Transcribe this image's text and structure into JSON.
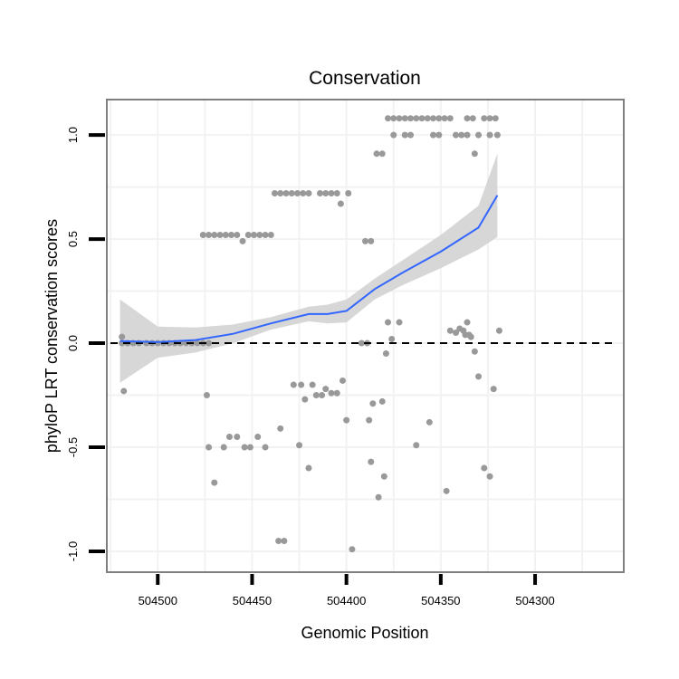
{
  "chart_data": {
    "type": "scatter",
    "title": "Conservation",
    "xlabel": "Genomic Position",
    "ylabel": "phyloP LRT conservation scores",
    "x_reversed": true,
    "xlim": [
      504253,
      504527
    ],
    "ylim": [
      -1.1,
      1.17
    ],
    "xticks": [
      504500,
      504450,
      504400,
      504350,
      504300
    ],
    "yticks": [
      1.0,
      0.5,
      0.0,
      -0.5,
      -1.0
    ],
    "ytick_labels": [
      "1.0",
      "0.5",
      "0.0",
      "-0.5",
      "-1.0"
    ],
    "reference_line_y": 0,
    "colors": {
      "points": "#999999",
      "smooth_line": "#3366ff",
      "confidence_band": "#d3d3d3",
      "panel_border": "#7f7f7f",
      "grid": "#f2f2f2",
      "reference_line": "#000000"
    },
    "points": [
      [
        504519,
        0.03
      ],
      [
        504518,
        -0.23
      ],
      [
        504474,
        -0.25
      ],
      [
        504473,
        -0.5
      ],
      [
        504470,
        -0.67
      ],
      [
        504465,
        -0.5
      ],
      [
        504462,
        -0.45
      ],
      [
        504458,
        -0.45
      ],
      [
        504454,
        -0.5
      ],
      [
        504451,
        -0.5
      ],
      [
        504447,
        -0.45
      ],
      [
        504443,
        -0.5
      ],
      [
        504436,
        -0.95
      ],
      [
        504433,
        -0.95
      ],
      [
        504435,
        -0.41
      ],
      [
        504428,
        -0.2
      ],
      [
        504425,
        -0.49
      ],
      [
        504424,
        -0.2
      ],
      [
        504422,
        -0.27
      ],
      [
        504420,
        -0.6
      ],
      [
        504418,
        -0.2
      ],
      [
        504416,
        -0.25
      ],
      [
        504413,
        -0.25
      ],
      [
        504411,
        -0.22
      ],
      [
        504408,
        -0.24
      ],
      [
        504405,
        -0.24
      ],
      [
        504402,
        -0.18
      ],
      [
        504400,
        -0.37
      ],
      [
        504397,
        -0.99
      ],
      [
        504392,
        0.0
      ],
      [
        504389,
        0.0
      ],
      [
        504388,
        -0.37
      ],
      [
        504387,
        -0.57
      ],
      [
        504386,
        -0.29
      ],
      [
        504383,
        -0.74
      ],
      [
        504380,
        -0.64
      ],
      [
        504381,
        -0.28
      ],
      [
        504379,
        -0.05
      ],
      [
        504378,
        0.1
      ],
      [
        504376,
        0.02
      ],
      [
        504372,
        0.1
      ],
      [
        504363,
        -0.49
      ],
      [
        504356,
        -0.38
      ],
      [
        504347,
        -0.71
      ],
      [
        504345,
        0.06
      ],
      [
        504342,
        0.05
      ],
      [
        504340,
        0.07
      ],
      [
        504337,
        0.04
      ],
      [
        504336,
        0.1
      ],
      [
        504334,
        0.03
      ],
      [
        504332,
        -0.04
      ],
      [
        504330,
        -0.16
      ],
      [
        504327,
        -0.6
      ],
      [
        504324,
        -0.64
      ],
      [
        504322,
        -0.22
      ],
      [
        504319,
        0.06
      ],
      [
        504335,
        0.04
      ],
      [
        504338,
        0.06
      ],
      [
        504476,
        0.52
      ],
      [
        504473,
        0.52
      ],
      [
        504470,
        0.52
      ],
      [
        504467,
        0.52
      ],
      [
        504464,
        0.52
      ],
      [
        504461,
        0.52
      ],
      [
        504458,
        0.52
      ],
      [
        504455,
        0.49
      ],
      [
        504452,
        0.52
      ],
      [
        504449,
        0.52
      ],
      [
        504446,
        0.52
      ],
      [
        504443,
        0.52
      ],
      [
        504440,
        0.52
      ],
      [
        504438,
        0.72
      ],
      [
        504435,
        0.72
      ],
      [
        504432,
        0.72
      ],
      [
        504429,
        0.72
      ],
      [
        504426,
        0.72
      ],
      [
        504423,
        0.72
      ],
      [
        504420,
        0.72
      ],
      [
        504414,
        0.72
      ],
      [
        504411,
        0.72
      ],
      [
        504408,
        0.72
      ],
      [
        504405,
        0.72
      ],
      [
        504403,
        0.67
      ],
      [
        504399,
        0.72
      ],
      [
        504390,
        0.49
      ],
      [
        504387,
        0.49
      ],
      [
        504384,
        0.91
      ],
      [
        504381,
        0.91
      ],
      [
        504378,
        1.08
      ],
      [
        504375,
        1.08
      ],
      [
        504372,
        1.08
      ],
      [
        504369,
        1.08
      ],
      [
        504366,
        1.08
      ],
      [
        504363,
        1.08
      ],
      [
        504360,
        1.08
      ],
      [
        504357,
        1.08
      ],
      [
        504354,
        1.08
      ],
      [
        504351,
        1.08
      ],
      [
        504348,
        1.08
      ],
      [
        504345,
        1.08
      ],
      [
        504336,
        1.08
      ],
      [
        504333,
        1.08
      ],
      [
        504327,
        1.08
      ],
      [
        504324,
        1.08
      ],
      [
        504321,
        1.08
      ],
      [
        504375,
        1.0
      ],
      [
        504369,
        1.0
      ],
      [
        504366,
        1.0
      ],
      [
        504354,
        1.0
      ],
      [
        504351,
        1.0
      ],
      [
        504342,
        1.0
      ],
      [
        504339,
        1.0
      ],
      [
        504336,
        1.0
      ],
      [
        504330,
        1.0
      ],
      [
        504324,
        1.0
      ],
      [
        504320,
        1.0
      ],
      [
        504332,
        0.91
      ]
    ],
    "flat_points_x": [
      504519,
      504516,
      504513,
      504510,
      504506,
      504503,
      504500,
      504497,
      504494,
      504491,
      504488,
      504485,
      504482,
      504479,
      504476,
      504473
    ],
    "flat_points_y": 0.0,
    "smooth_x": [
      504520,
      504500,
      504480,
      504460,
      504440,
      504420,
      504410,
      504400,
      504385,
      504370,
      504350,
      504330,
      504320
    ],
    "smooth_y": [
      0.01,
      0.005,
      0.015,
      0.045,
      0.095,
      0.14,
      0.14,
      0.155,
      0.26,
      0.34,
      0.44,
      0.555,
      0.71
    ],
    "smooth_upper": [
      0.21,
      0.08,
      0.075,
      0.09,
      0.125,
      0.175,
      0.185,
      0.21,
      0.31,
      0.4,
      0.52,
      0.66,
      0.91
    ],
    "smooth_lower": [
      -0.19,
      -0.07,
      -0.045,
      0.0,
      0.065,
      0.105,
      0.095,
      0.1,
      0.21,
      0.28,
      0.36,
      0.45,
      0.51
    ]
  }
}
